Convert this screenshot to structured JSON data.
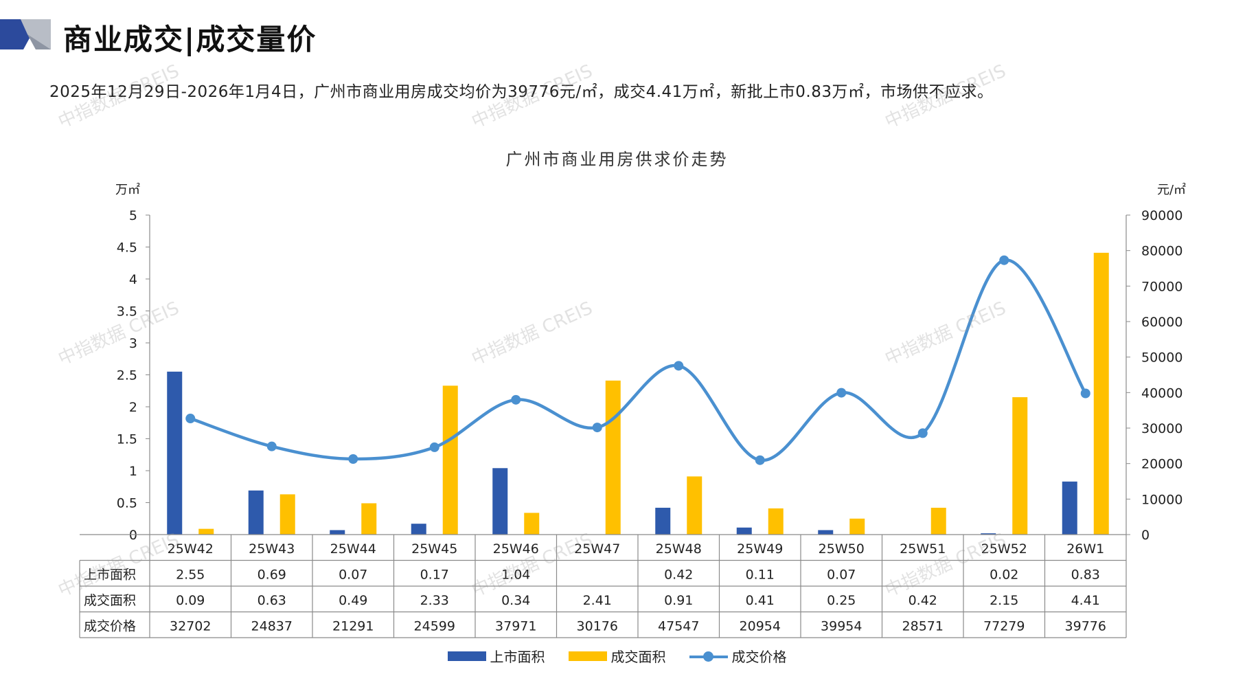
{
  "header": {
    "title": "商业成交|成交量价"
  },
  "summary": "2025年12月29日-2026年1月4日，广州市商业用房成交均价为39776元/㎡，成交4.41万㎡，新批上市0.83万㎡，市场供不应求。",
  "watermark_text": "中指数据 CREIS",
  "colors": {
    "supply": "#2E5AAC",
    "deal_area": "#FFC000",
    "price": "#4A90D0",
    "logo_dark": "#2C4A9C",
    "logo_light": "#B8BDC6"
  },
  "chart_data": {
    "type": "bar",
    "title": "广州市商业用房供求价走势",
    "ylabel_left": "万㎡",
    "ylabel_right": "元/㎡",
    "ylim_left": [
      0,
      5
    ],
    "ylim_right": [
      0,
      90000
    ],
    "yticks_left": [
      "0",
      "0.5",
      "1",
      "1.5",
      "2",
      "2.5",
      "3",
      "3.5",
      "4",
      "4.5",
      "5"
    ],
    "yticks_right": [
      "0",
      "10000",
      "20000",
      "30000",
      "40000",
      "50000",
      "60000",
      "70000",
      "80000",
      "90000"
    ],
    "categories": [
      "25W42",
      "25W43",
      "25W44",
      "25W45",
      "25W46",
      "25W47",
      "25W48",
      "25W49",
      "25W50",
      "25W51",
      "25W52",
      "26W1"
    ],
    "series": [
      {
        "name": "上市面积",
        "type": "bar",
        "axis": "left",
        "values": [
          2.55,
          0.69,
          0.07,
          0.17,
          1.04,
          null,
          0.42,
          0.11,
          0.07,
          null,
          0.02,
          0.83
        ]
      },
      {
        "name": "成交面积",
        "type": "bar",
        "axis": "left",
        "values": [
          0.09,
          0.63,
          0.49,
          2.33,
          0.34,
          2.41,
          0.91,
          0.41,
          0.25,
          0.42,
          2.15,
          4.41
        ]
      },
      {
        "name": "成交价格",
        "type": "line",
        "axis": "right",
        "values": [
          32702,
          24837,
          21291,
          24599,
          37971,
          30176,
          47547,
          20954,
          39954,
          28571,
          77279,
          39776
        ]
      }
    ],
    "table_rows": [
      {
        "label": "上市面积",
        "cells": [
          "2.55",
          "0.69",
          "0.07",
          "0.17",
          "1.04",
          "",
          "0.42",
          "0.11",
          "0.07",
          "",
          "0.02",
          "0.83"
        ]
      },
      {
        "label": "成交面积",
        "cells": [
          "0.09",
          "0.63",
          "0.49",
          "2.33",
          "0.34",
          "2.41",
          "0.91",
          "0.41",
          "0.25",
          "0.42",
          "2.15",
          "4.41"
        ]
      },
      {
        "label": "成交价格",
        "cells": [
          "32702",
          "24837",
          "21291",
          "24599",
          "37971",
          "30176",
          "47547",
          "20954",
          "39954",
          "28571",
          "77279",
          "39776"
        ]
      }
    ],
    "grid": false,
    "legend_position": "bottom"
  }
}
